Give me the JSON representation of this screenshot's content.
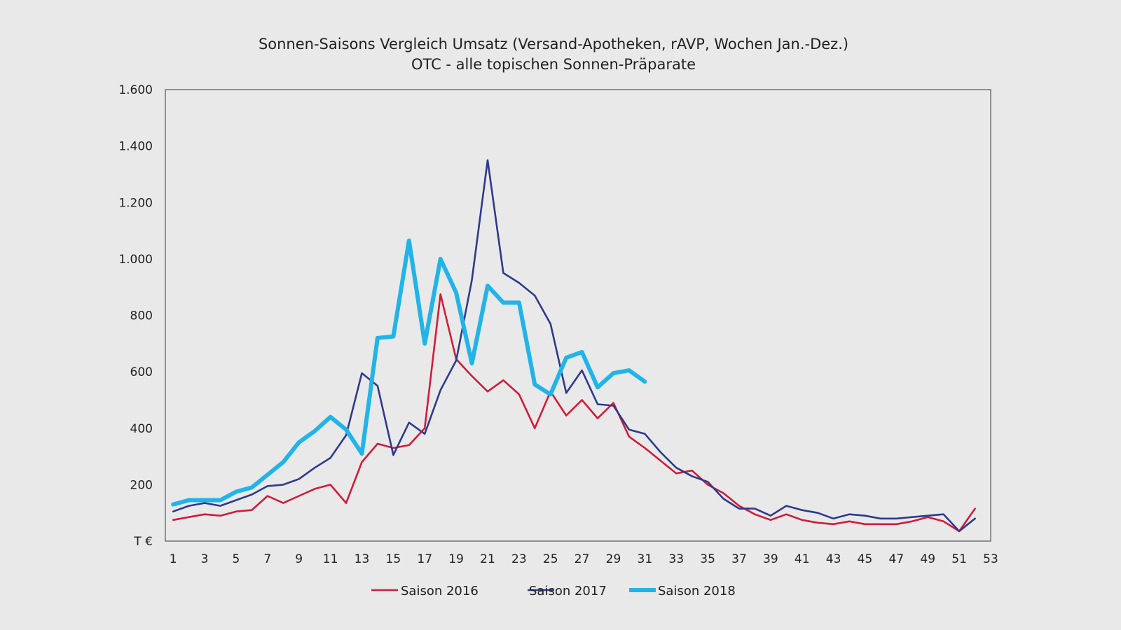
{
  "chart_data": {
    "type": "line",
    "title": "Sonnen-Saisons Vergleich Umsatz (Versand-Apotheken, rAVP, Wochen Jan.-Dez.)",
    "subtitle": "OTC - alle topischen Sonnen-Präparate",
    "ylabel": "T €",
    "xlabel": "",
    "ylim": [
      0,
      1600
    ],
    "xlim": [
      0.5,
      53
    ],
    "yticks": [
      200,
      400,
      600,
      800,
      1000,
      1200,
      1400,
      1600
    ],
    "ytick_labels": [
      "200",
      "400",
      "600",
      "800",
      "1.000",
      "1.200",
      "1.400",
      "1.600"
    ],
    "xticks": [
      1,
      3,
      5,
      7,
      9,
      11,
      13,
      15,
      17,
      19,
      21,
      23,
      25,
      27,
      29,
      31,
      33,
      35,
      37,
      39,
      41,
      43,
      45,
      47,
      49,
      51,
      53
    ],
    "grid": false,
    "legend_position": "bottom",
    "series": [
      {
        "name": "Saison 2016",
        "color": "#d01c3a",
        "x": [
          1,
          2,
          3,
          4,
          5,
          6,
          7,
          8,
          9,
          10,
          11,
          12,
          13,
          14,
          15,
          16,
          17,
          18,
          19,
          20,
          21,
          22,
          23,
          24,
          25,
          26,
          27,
          28,
          29,
          30,
          31,
          32,
          33,
          34,
          35,
          36,
          37,
          38,
          39,
          40,
          41,
          42,
          43,
          44,
          45,
          46,
          47,
          48,
          49,
          50,
          51,
          52
        ],
        "values": [
          75,
          85,
          95,
          90,
          105,
          110,
          160,
          135,
          160,
          185,
          200,
          135,
          280,
          345,
          330,
          340,
          400,
          875,
          645,
          585,
          530,
          570,
          520,
          400,
          530,
          445,
          500,
          435,
          490,
          370,
          330,
          285,
          240,
          250,
          200,
          170,
          125,
          95,
          75,
          95,
          75,
          65,
          60,
          70,
          60,
          60,
          60,
          70,
          85,
          70,
          35,
          115
        ]
      },
      {
        "name": "Saison 2017",
        "color": "#2e3a8c",
        "x": [
          1,
          2,
          3,
          4,
          5,
          6,
          7,
          8,
          9,
          10,
          11,
          12,
          13,
          14,
          15,
          16,
          17,
          18,
          19,
          20,
          21,
          22,
          23,
          24,
          25,
          26,
          27,
          28,
          29,
          30,
          31,
          32,
          33,
          34,
          35,
          36,
          37,
          38,
          39,
          40,
          41,
          42,
          43,
          44,
          45,
          46,
          47,
          48,
          49,
          50,
          51,
          52
        ],
        "values": [
          105,
          125,
          135,
          125,
          145,
          165,
          195,
          200,
          220,
          260,
          295,
          375,
          595,
          550,
          305,
          420,
          380,
          535,
          640,
          925,
          1350,
          950,
          915,
          870,
          770,
          525,
          605,
          485,
          480,
          395,
          380,
          315,
          260,
          230,
          210,
          150,
          115,
          115,
          90,
          125,
          110,
          100,
          80,
          95,
          90,
          80,
          80,
          85,
          90,
          95,
          35,
          80
        ]
      },
      {
        "name": "Saison 2018",
        "color": "#22b4e9",
        "x": [
          1,
          2,
          3,
          4,
          5,
          6,
          7,
          8,
          9,
          10,
          11,
          12,
          13,
          14,
          15,
          16,
          17,
          18,
          19,
          20,
          21,
          22,
          23,
          24,
          25,
          26,
          27,
          28,
          29,
          30,
          31
        ],
        "values": [
          130,
          145,
          145,
          145,
          175,
          190,
          235,
          280,
          350,
          390,
          440,
          395,
          310,
          720,
          725,
          1065,
          700,
          1000,
          880,
          630,
          905,
          845,
          845,
          555,
          520,
          650,
          670,
          545,
          595,
          605,
          565
        ]
      }
    ]
  }
}
